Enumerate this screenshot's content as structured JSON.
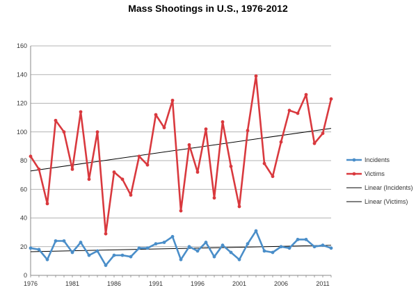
{
  "chart_data": {
    "type": "line",
    "title": "Mass Shootings in U.S., 1976-2012",
    "xlabel": "",
    "ylabel": "",
    "ylim": [
      0,
      160
    ],
    "xlim": [
      1976,
      2012
    ],
    "yticks": [
      0,
      20,
      40,
      60,
      80,
      100,
      120,
      140,
      160
    ],
    "xticks": [
      1976,
      1981,
      1986,
      1991,
      1996,
      2001,
      2006,
      2011
    ],
    "grid": "horizontal",
    "legend_position": "right",
    "x": [
      1976,
      1977,
      1978,
      1979,
      1980,
      1981,
      1982,
      1983,
      1984,
      1985,
      1986,
      1987,
      1988,
      1989,
      1990,
      1991,
      1992,
      1993,
      1994,
      1995,
      1996,
      1997,
      1998,
      1999,
      2000,
      2001,
      2002,
      2003,
      2004,
      2005,
      2006,
      2007,
      2008,
      2009,
      2010,
      2011,
      2012
    ],
    "series": [
      {
        "name": "Incidents",
        "color": "#4a8ec9",
        "values": [
          19,
          18,
          11,
          24,
          24,
          16,
          23,
          14,
          17,
          7,
          14,
          14,
          13,
          19,
          19,
          22,
          23,
          27,
          11,
          20,
          17,
          23,
          13,
          21,
          16,
          11,
          22,
          31,
          17,
          16,
          20,
          19,
          25,
          25,
          20,
          21,
          19
        ]
      },
      {
        "name": "Victims",
        "color": "#d9393e",
        "values": [
          83,
          74,
          50,
          108,
          100,
          74,
          114,
          67,
          100,
          29,
          72,
          67,
          56,
          83,
          77,
          112,
          103,
          122,
          45,
          91,
          72,
          102,
          54,
          107,
          76,
          48,
          101,
          139,
          78,
          69,
          93,
          115,
          113,
          126,
          92,
          99,
          123
        ]
      }
    ],
    "trendlines": [
      {
        "name": "Linear (Incidents)",
        "color": "#000000",
        "start": 16.5,
        "end": 21.0
      },
      {
        "name": "Linear (Victims)",
        "color": "#000000",
        "start": 72.8,
        "end": 102.5
      }
    ]
  }
}
